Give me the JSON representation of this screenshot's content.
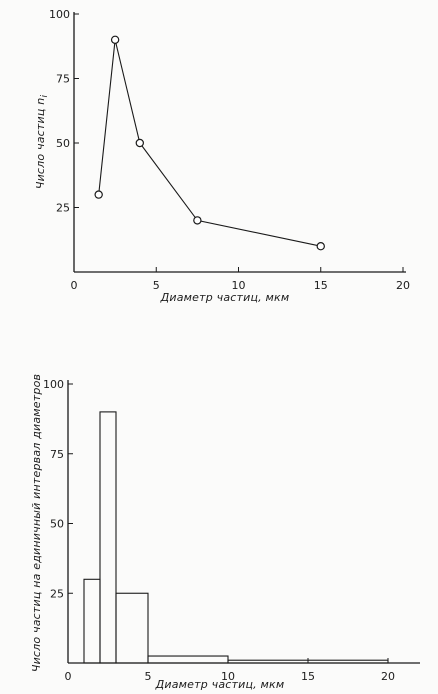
{
  "chart_data": [
    {
      "type": "line",
      "title": "",
      "xlabel": "Диаметр частиц, мкм",
      "ylabel": "Число частиц  n",
      "ylabel_subscript": "i",
      "xlim": [
        0,
        20
      ],
      "ylim": [
        0,
        100
      ],
      "xticks": [
        "0",
        "5",
        "10",
        "15",
        "20"
      ],
      "yticks": [
        "25",
        "50",
        "75",
        "100"
      ],
      "markers": "open-circle",
      "grid": false,
      "series": [
        {
          "x": [
            1.5,
            2.5,
            4,
            7.5,
            15
          ],
          "y": [
            30,
            90,
            50,
            20,
            10
          ]
        }
      ]
    },
    {
      "type": "bar",
      "title": "",
      "xlabel": "Диаметр частиц, мкм",
      "ylabel": "Число частиц на единичный интервал диаметров",
      "xlim": [
        0,
        22
      ],
      "ylim": [
        0,
        100
      ],
      "xticks": [
        "0",
        "5",
        "10",
        "15",
        "20"
      ],
      "yticks": [
        "25",
        "50",
        "75",
        "100"
      ],
      "grid": false,
      "bins": [
        {
          "from": 1,
          "to": 2,
          "value": 30
        },
        {
          "from": 2,
          "to": 3,
          "value": 90
        },
        {
          "from": 3,
          "to": 5,
          "value": 25
        },
        {
          "from": 5,
          "to": 10,
          "value": 2.5
        },
        {
          "from": 10,
          "to": 20,
          "value": 1
        }
      ]
    }
  ]
}
